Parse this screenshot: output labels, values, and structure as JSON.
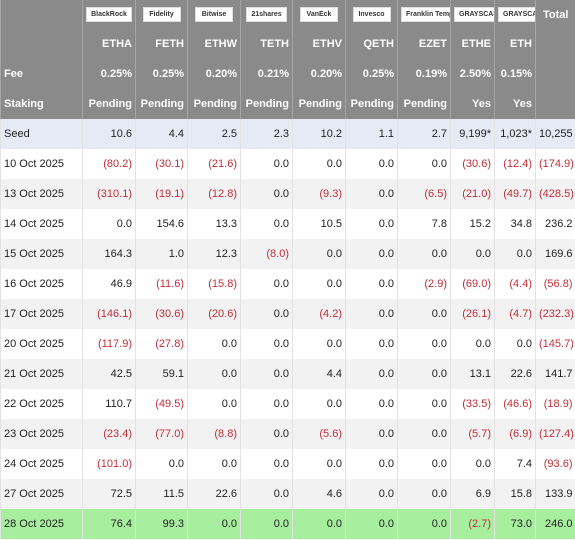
{
  "header": {
    "logos": [
      "BlackRock",
      "Fidelity",
      "Bitwise",
      "21shares",
      "VanEck",
      "Invesco",
      "Franklin Templeton",
      "GRAYSCALE",
      "GRAYSCALE"
    ],
    "total_label": "Total",
    "tickers": [
      "ETHA",
      "FETH",
      "ETHW",
      "TETH",
      "ETHV",
      "QETH",
      "EZET",
      "ETHE",
      "ETH"
    ],
    "fee": {
      "label": "Fee",
      "values": [
        "0.25%",
        "0.25%",
        "0.20%",
        "0.21%",
        "0.20%",
        "0.25%",
        "0.19%",
        "2.50%",
        "0.15%"
      ]
    },
    "staking": {
      "label": "Staking",
      "values": [
        "Pending",
        "Pending",
        "Pending",
        "Pending",
        "Pending",
        "Pending",
        "Pending",
        "Yes",
        "Yes"
      ]
    }
  },
  "table": {
    "rows": [
      {
        "label": "Seed",
        "cells": [
          "10.6",
          "4.4",
          "2.5",
          "2.3",
          "10.2",
          "1.1",
          "2.7",
          "9,199*",
          "1,023*",
          "10,255"
        ]
      },
      {
        "label": "10 Oct 2025",
        "cells": [
          "(80.2)",
          "(30.1)",
          "(21.6)",
          "0.0",
          "0.0",
          "0.0",
          "0.0",
          "(30.6)",
          "(12.4)",
          "(174.9)"
        ]
      },
      {
        "label": "13 Oct 2025",
        "cells": [
          "(310.1)",
          "(19.1)",
          "(12.8)",
          "0.0",
          "(9.3)",
          "0.0",
          "(6.5)",
          "(21.0)",
          "(49.7)",
          "(428.5)"
        ]
      },
      {
        "label": "14 Oct 2025",
        "cells": [
          "0.0",
          "154.6",
          "13.3",
          "0.0",
          "10.5",
          "0.0",
          "7.8",
          "15.2",
          "34.8",
          "236.2"
        ]
      },
      {
        "label": "15 Oct 2025",
        "cells": [
          "164.3",
          "1.0",
          "12.3",
          "(8.0)",
          "0.0",
          "0.0",
          "0.0",
          "0.0",
          "0.0",
          "169.6"
        ]
      },
      {
        "label": "16 Oct 2025",
        "cells": [
          "46.9",
          "(11.6)",
          "(15.8)",
          "0.0",
          "0.0",
          "0.0",
          "(2.9)",
          "(69.0)",
          "(4.4)",
          "(56.8)"
        ]
      },
      {
        "label": "17 Oct 2025",
        "cells": [
          "(146.1)",
          "(30.6)",
          "(20.6)",
          "0.0",
          "(4.2)",
          "0.0",
          "0.0",
          "(26.1)",
          "(4.7)",
          "(232.3)"
        ]
      },
      {
        "label": "20 Oct 2025",
        "cells": [
          "(117.9)",
          "(27.8)",
          "0.0",
          "0.0",
          "0.0",
          "0.0",
          "0.0",
          "0.0",
          "0.0",
          "(145.7)"
        ]
      },
      {
        "label": "21 Oct 2025",
        "cells": [
          "42.5",
          "59.1",
          "0.0",
          "0.0",
          "4.4",
          "0.0",
          "0.0",
          "13.1",
          "22.6",
          "141.7"
        ]
      },
      {
        "label": "22 Oct 2025",
        "cells": [
          "110.7",
          "(49.5)",
          "0.0",
          "0.0",
          "0.0",
          "0.0",
          "0.0",
          "(33.5)",
          "(46.6)",
          "(18.9)"
        ]
      },
      {
        "label": "23 Oct 2025",
        "cells": [
          "(23.4)",
          "(77.0)",
          "(8.8)",
          "0.0",
          "(5.6)",
          "0.0",
          "0.0",
          "(5.7)",
          "(6.9)",
          "(127.4)"
        ]
      },
      {
        "label": "24 Oct 2025",
        "cells": [
          "(101.0)",
          "0.0",
          "0.0",
          "0.0",
          "0.0",
          "0.0",
          "0.0",
          "0.0",
          "7.4",
          "(93.6)"
        ]
      },
      {
        "label": "27 Oct 2025",
        "cells": [
          "72.5",
          "11.5",
          "22.6",
          "0.0",
          "4.6",
          "0.0",
          "0.0",
          "6.9",
          "15.8",
          "133.9"
        ]
      },
      {
        "label": "28 Oct 2025",
        "cells": [
          "76.4",
          "99.3",
          "0.0",
          "0.0",
          "0.0",
          "0.0",
          "0.0",
          "(2.7)",
          "73.0",
          "246.0"
        ]
      }
    ]
  }
}
